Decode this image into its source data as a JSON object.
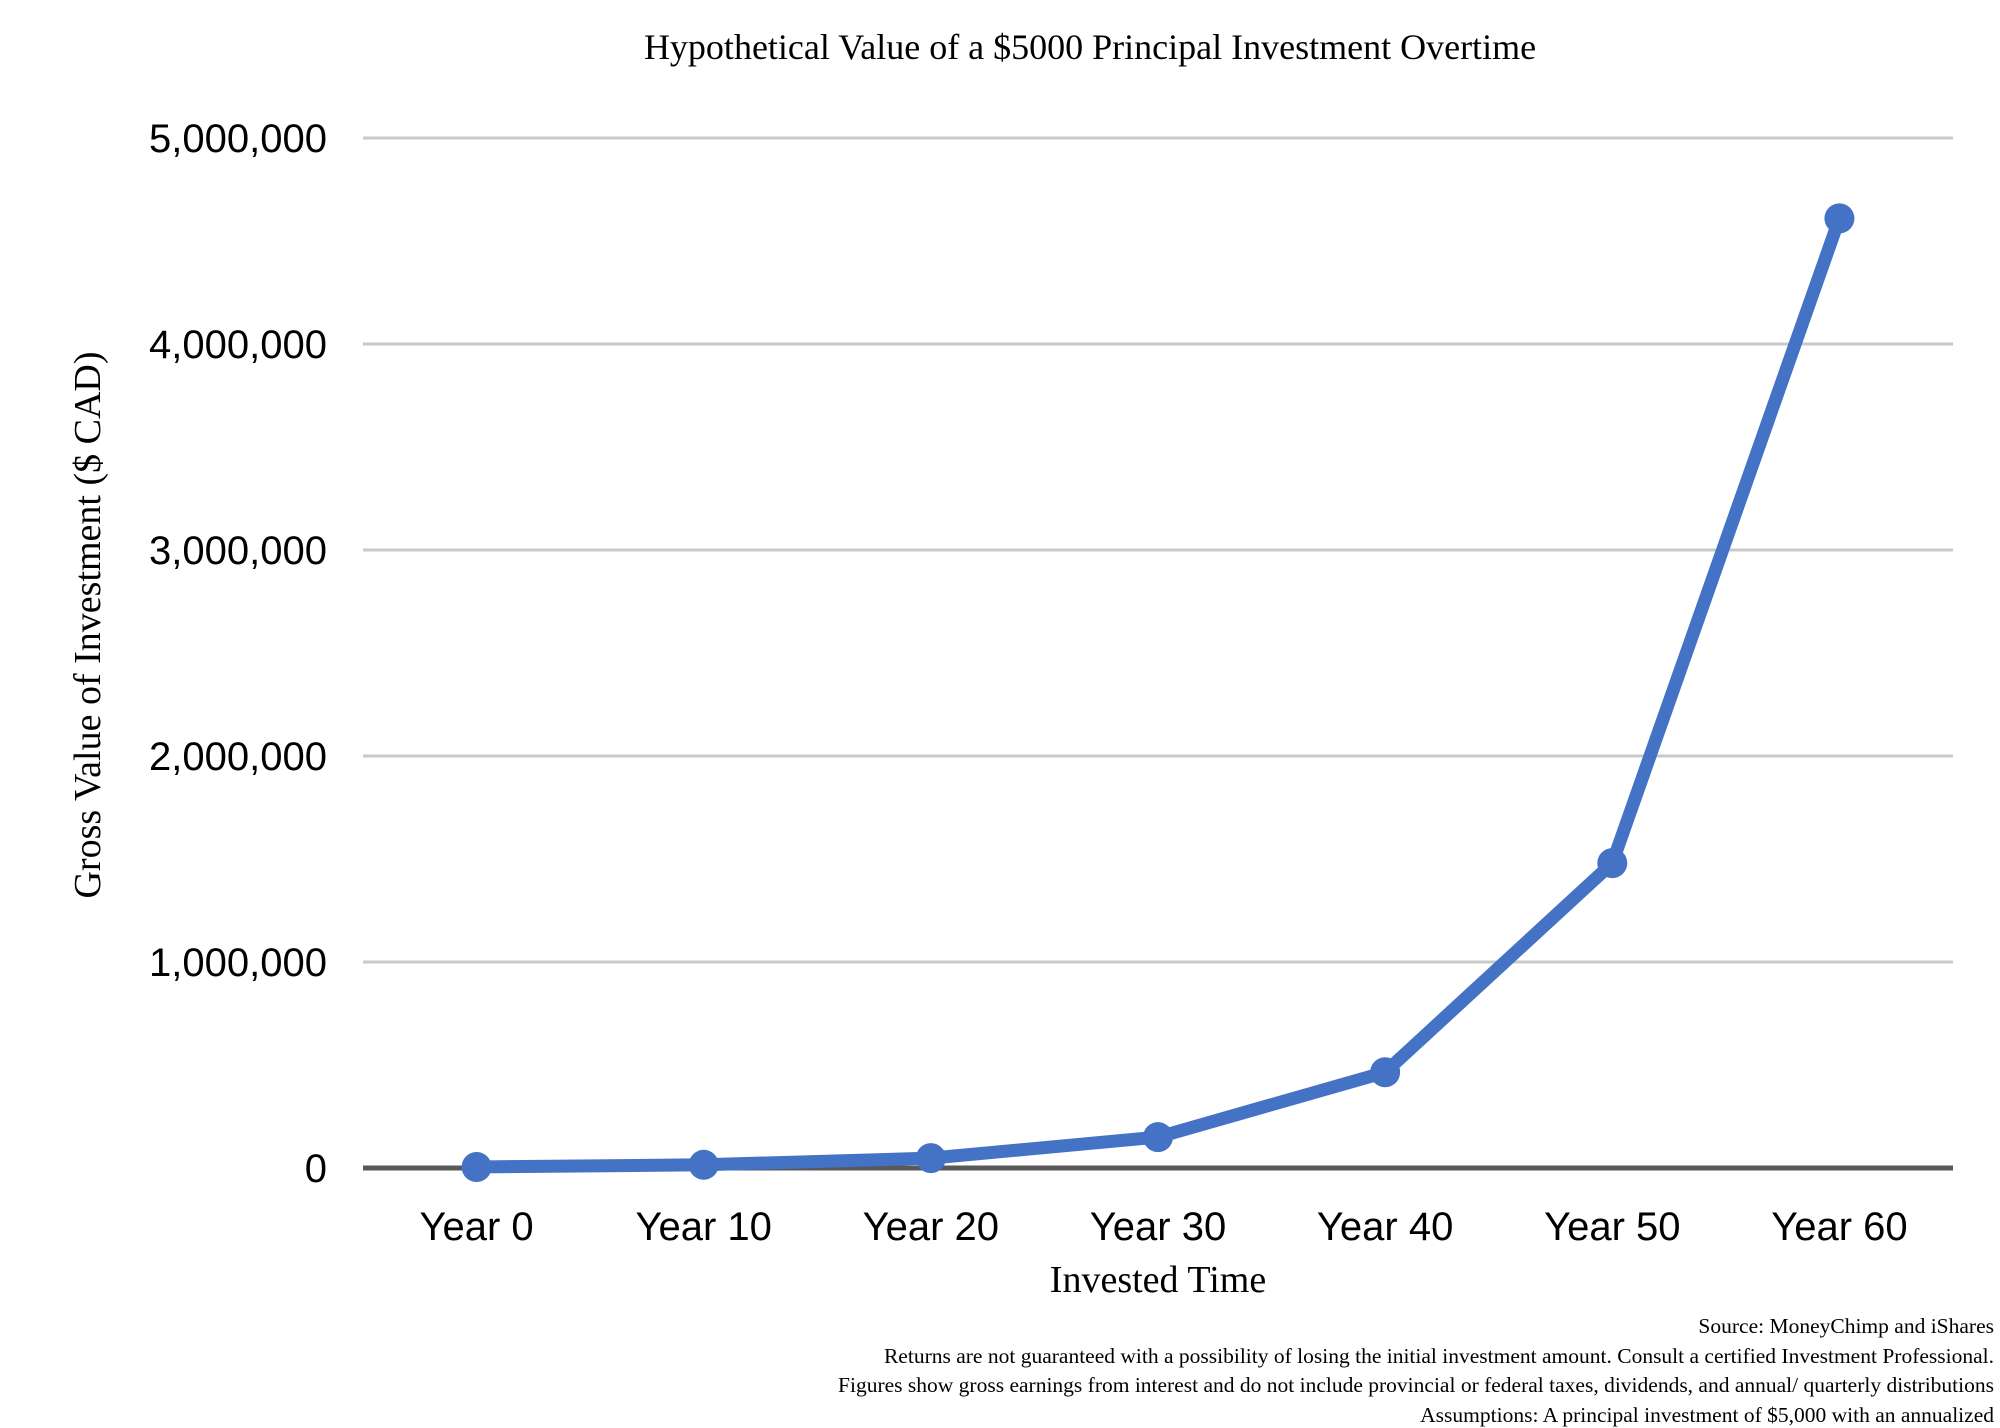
{
  "colors": {
    "line": "#4472C4",
    "marker": "#4472C4",
    "gridline": "#C9C9C9",
    "axis_line": "#595959",
    "text": "#000000"
  },
  "chart_data": {
    "type": "line",
    "title": "Hypothetical Value of a $5000 Principal Investment Overtime",
    "xlabel": "Invested Time",
    "ylabel": "Gross Value of Investment ($ CAD)",
    "categories": [
      "Year 0",
      "Year 10",
      "Year 20",
      "Year 30",
      "Year 40",
      "Year 50",
      "Year 60"
    ],
    "values": [
      5000,
      15500,
      48000,
      150000,
      465000,
      1480000,
      4610000
    ],
    "ylim": [
      0,
      5000000
    ],
    "yticks": [
      {
        "value": 0,
        "label": "0"
      },
      {
        "value": 1000000,
        "label": "1,000,000"
      },
      {
        "value": 2000000,
        "label": "2,000,000"
      },
      {
        "value": 3000000,
        "label": "3,000,000"
      },
      {
        "value": 4000000,
        "label": "4,000,000"
      },
      {
        "value": 5000000,
        "label": "5,000,000"
      }
    ],
    "grid": true,
    "legend": false,
    "marker": "circle"
  },
  "footer": {
    "lines": [
      "Source: MoneyChimp and iShares",
      "Returns are not guaranteed with a possibility of losing the initial investment amount. Consult a certified Investment Professional.",
      "Figures show gross earnings from interest and do not include provincial or federal taxes, dividends, and annual/ quarterly distributions",
      "Assumptions: A principal investment of $5,000 with an annualized"
    ]
  }
}
